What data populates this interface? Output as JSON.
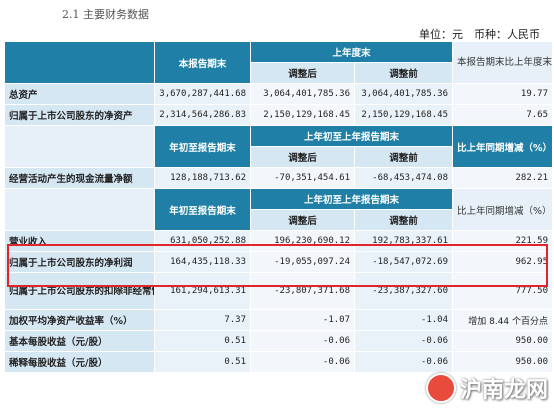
{
  "section_title": "2.1 主要财务数据",
  "unit_line": "单位：元　币种：人民币",
  "table": {
    "h1": {
      "current": "本报告期末",
      "prev_year_end": "上年度末",
      "adjusted": "调整后",
      "before_adjust": "调整前",
      "change": "本报告期末比上年度末增减（%）"
    },
    "total_assets": {
      "label": "总资产",
      "current": "3,670,287,441.68",
      "adjusted": "3,064,401,785.36",
      "before": "3,064,401,785.36",
      "change": "19.77"
    },
    "net_assets": {
      "label": "归属于上市公司股东的净资产",
      "current": "2,314,564,286.83",
      "adjusted": "2,150,129,168.45",
      "before": "2,150,129,168.45",
      "change": "7.65"
    },
    "h2": {
      "current": "年初至报告期末",
      "prev": "上年初至上年报告期末",
      "adjusted": "调整后",
      "before_adjust": "调整前",
      "change": "比上年同期增减（%）"
    },
    "cash_flow": {
      "label": "经营活动产生的现金流量净额",
      "current": "128,188,713.62",
      "adjusted": "-70,351,454.61",
      "before": "-68,453,474.08",
      "change": "282.21"
    },
    "h3": {
      "current": "年初至报告期末",
      "prev": "上年初至上年报告期末",
      "adjusted": "调整后",
      "before_adjust": "调整前",
      "change": "比上年同期增减（%）"
    },
    "revenue": {
      "label": "营业收入",
      "current": "631,050,252.88",
      "adjusted": "196,230,690.12",
      "before": "192,783,337.61",
      "change": "221.59"
    },
    "net_profit": {
      "label": "归属于上市公司股东的净利润",
      "current": "164,435,118.33",
      "adjusted": "-19,055,097.24",
      "before": "-18,547,072.69",
      "change": "962.95"
    },
    "net_profit_deducted": {
      "label": "归属于上市公司股东的扣除非经常性损益的净利润",
      "current": "161,294,613.31",
      "adjusted": "-23,807,371.68",
      "before": "-23,387,327.60",
      "change": "777.50"
    },
    "roe": {
      "label": "加权平均净资产收益率（%）",
      "current": "7.37",
      "adjusted": "-1.07",
      "before": "-1.04",
      "change": "增加 8.44 个百分点"
    },
    "eps_basic": {
      "label": "基本每股收益（元/股）",
      "current": "0.51",
      "adjusted": "-0.06",
      "before": "-0.06",
      "change": "950.00"
    },
    "eps_diluted": {
      "label": "稀释每股收益（元/股）",
      "current": "0.51",
      "adjusted": "-0.06",
      "before": "-0.06",
      "change": "950.00"
    }
  },
  "watermark": "沪南龙网",
  "colors": {
    "header_blue": "#1f7fa6",
    "label_bg": "#d6e7f4",
    "cell_bg": "#eaf2f9",
    "highlight_red": "#e0262b"
  }
}
